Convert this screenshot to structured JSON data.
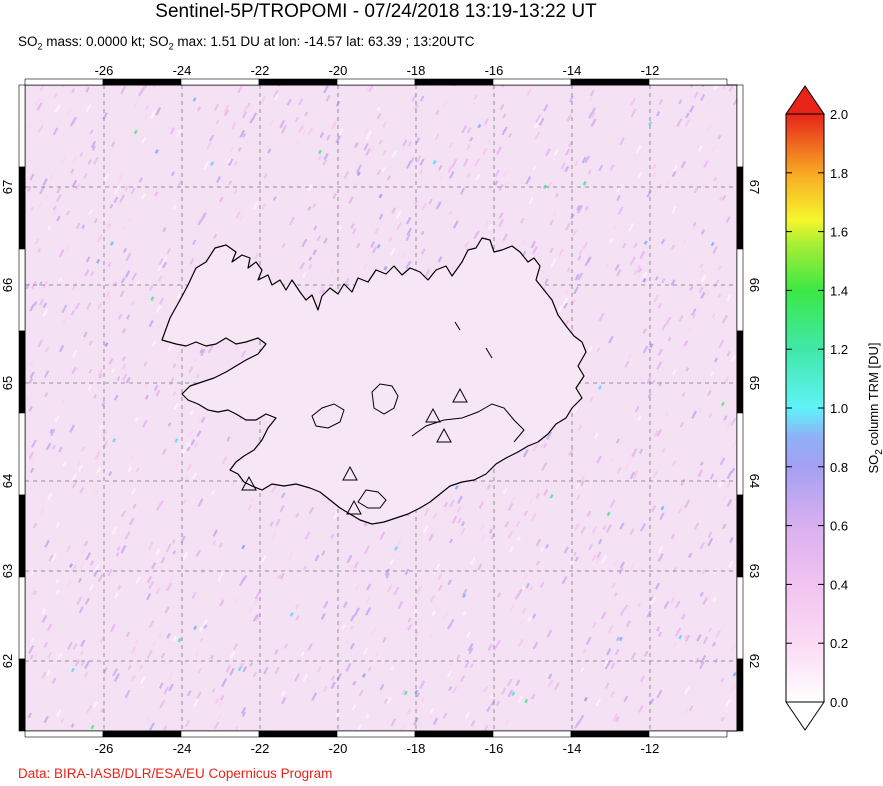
{
  "header": {
    "title": "Sentinel-5P/TROPOMI - 07/24/2018 13:19-13:22 UT",
    "subtitle_a": "SO",
    "subtitle_b": " mass: 0.0000 kt; SO",
    "subtitle_c": " max: 1.51 DU at lon: -14.57 lat: 63.39 ; 13:20UTC",
    "subscript": "2"
  },
  "map": {
    "lon_ticks": [
      "-26",
      "-24",
      "-22",
      "-20",
      "-18",
      "-16",
      "-14",
      "-12"
    ],
    "lat_ticks": [
      "67",
      "66",
      "65",
      "64",
      "63",
      "62"
    ],
    "lon_values": [
      -26,
      -24,
      -22,
      -20,
      -18,
      -16,
      -14,
      -12
    ],
    "lat_values": [
      67,
      66,
      65,
      64,
      63,
      62
    ],
    "lon_range": [
      -28,
      -8
    ],
    "lat_range": [
      61,
      68
    ],
    "volcano_markers": "triangle",
    "background_color": "#f2dcf3",
    "coastline_color": "#000000"
  },
  "colorbar": {
    "labels": [
      "2.0",
      "1.8",
      "1.6",
      "1.4",
      "1.2",
      "1.0",
      "0.8",
      "0.6",
      "0.4",
      "0.2",
      "0.0"
    ],
    "values": [
      2.0,
      1.8,
      1.6,
      1.4,
      1.2,
      1.0,
      0.8,
      0.6,
      0.4,
      0.2,
      0.0
    ],
    "label_title": "SO",
    "label_sub": "2",
    "label_rest": " column TRM [DU]",
    "range": [
      0.0,
      2.0
    ],
    "colors": [
      "#ffffff",
      "#f7c9f0",
      "#d7b0ee",
      "#9b9bf0",
      "#7fb5f6",
      "#5ff0f8",
      "#3cf070",
      "#9fed38",
      "#f5f52c",
      "#f9b626",
      "#f3681e",
      "#e2231a"
    ]
  },
  "footer": {
    "credit": "Data: BIRA-IASB/DLR/ESA/EU Copernicus Program"
  }
}
